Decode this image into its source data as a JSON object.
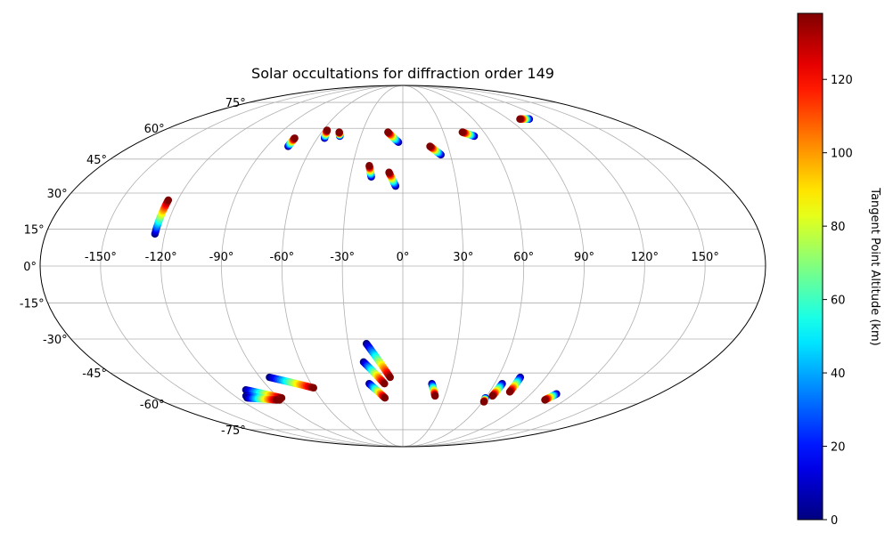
{
  "chart_data": {
    "type": "scatter",
    "projection": "mollweide",
    "title": "Solar occultations for diffraction order 149",
    "grid": true,
    "xlabel": "",
    "ylabel": "",
    "lon_ticks": [
      "-150°",
      "-120°",
      "-90°",
      "-60°",
      "-30°",
      "0°",
      "30°",
      "60°",
      "90°",
      "120°",
      "150°"
    ],
    "lon_tick_values": [
      -150,
      -120,
      -90,
      -60,
      -30,
      0,
      30,
      60,
      90,
      120,
      150
    ],
    "lat_ticks": [
      "75°",
      "60°",
      "45°",
      "30°",
      "15°",
      "0°",
      "-15°",
      "-30°",
      "-45°",
      "-60°",
      "-75°"
    ],
    "lat_tick_values": [
      75,
      60,
      45,
      30,
      15,
      0,
      -15,
      -30,
      -45,
      -60,
      -75
    ],
    "colorbar": {
      "label": "Tangent Point Altitude (km)",
      "colormap": "jet",
      "range": [
        0,
        138
      ],
      "ticks": [
        "0",
        "20",
        "40",
        "60",
        "80",
        "100",
        "120"
      ],
      "tick_values": [
        0,
        20,
        40,
        60,
        80,
        100,
        120
      ]
    },
    "tracks": [
      {
        "lon_top": -125,
        "lat_top": 27,
        "lon_bottom": -125,
        "lat_bottom": 13,
        "alt_top": 138,
        "alt_bottom": 0
      },
      {
        "lon_top": -76,
        "lat_top": 55,
        "lon_bottom": -76,
        "lat_bottom": 51,
        "alt_top": 138,
        "alt_bottom": 0
      },
      {
        "lon_top": -57,
        "lat_top": 59,
        "lon_bottom": -55,
        "lat_bottom": 55,
        "alt_top": 138,
        "alt_bottom": 0
      },
      {
        "lon_top": -47,
        "lat_top": 58,
        "lon_bottom": -45,
        "lat_bottom": 56,
        "alt_top": 138,
        "alt_bottom": 0
      },
      {
        "lon_top": -11,
        "lat_top": 58,
        "lon_bottom": -3,
        "lat_bottom": 53,
        "alt_top": 138,
        "alt_bottom": 0
      },
      {
        "lon_top": -20,
        "lat_top": 42,
        "lon_bottom": -18,
        "lat_bottom": 37,
        "alt_top": 138,
        "alt_bottom": 0
      },
      {
        "lon_top": -8,
        "lat_top": 39,
        "lon_bottom": -4,
        "lat_bottom": 33,
        "alt_top": 138,
        "alt_bottom": 0
      },
      {
        "lon_top": 18,
        "lat_top": 51,
        "lon_bottom": 24,
        "lat_bottom": 47,
        "alt_top": 138,
        "alt_bottom": 0
      },
      {
        "lon_top": 44,
        "lat_top": 58,
        "lon_bottom": 51,
        "lat_bottom": 56,
        "alt_top": 138,
        "alt_bottom": 0
      },
      {
        "lon_top": 100,
        "lat_top": 65,
        "lon_bottom": 108,
        "lat_bottom": 65,
        "alt_top": 138,
        "alt_bottom": 0
      },
      {
        "lon_top": -8,
        "lat_top": -47,
        "lon_bottom": -20,
        "lat_bottom": -32,
        "alt_top": 138,
        "alt_bottom": 0
      },
      {
        "lon_top": -12,
        "lat_top": -50,
        "lon_bottom": -23,
        "lat_bottom": -40,
        "alt_top": 138,
        "alt_bottom": 0
      },
      {
        "lon_top": -13,
        "lat_top": -57,
        "lon_bottom": -22,
        "lat_bottom": -50,
        "alt_top": 138,
        "alt_bottom": 0
      },
      {
        "lon_top": -60,
        "lat_top": -52,
        "lon_bottom": -84,
        "lat_bottom": -47,
        "alt_top": 138,
        "alt_bottom": 0
      },
      {
        "lon_top": -88,
        "lat_top": -57,
        "lon_bottom": -107,
        "lat_bottom": -53,
        "alt_top": 138,
        "alt_bottom": 0
      },
      {
        "lon_top": -91,
        "lat_top": -58,
        "lon_bottom": -112,
        "lat_bottom": -56,
        "alt_top": 138,
        "alt_bottom": 0
      },
      {
        "lon_top": -93,
        "lat_top": -58,
        "lon_bottom": -113,
        "lat_bottom": -57,
        "alt_top": 138,
        "alt_bottom": 0
      },
      {
        "lon_top": 23,
        "lat_top": -56,
        "lon_bottom": 19,
        "lat_bottom": -50,
        "alt_top": 138,
        "alt_bottom": 0
      },
      {
        "lon_top": 61,
        "lat_top": -59,
        "lon_bottom": 60,
        "lat_bottom": -57,
        "alt_top": 138,
        "alt_bottom": 0
      },
      {
        "lon_top": 64,
        "lat_top": -56,
        "lon_bottom": 65,
        "lat_bottom": -50,
        "alt_top": 138,
        "alt_bottom": 0
      },
      {
        "lon_top": 74,
        "lat_top": -54,
        "lon_bottom": 74,
        "lat_bottom": -47,
        "alt_top": 138,
        "alt_bottom": 0
      },
      {
        "lon_top": 105,
        "lat_top": -58,
        "lon_bottom": 108,
        "lat_bottom": -55,
        "alt_top": 138,
        "alt_bottom": 0
      }
    ]
  }
}
